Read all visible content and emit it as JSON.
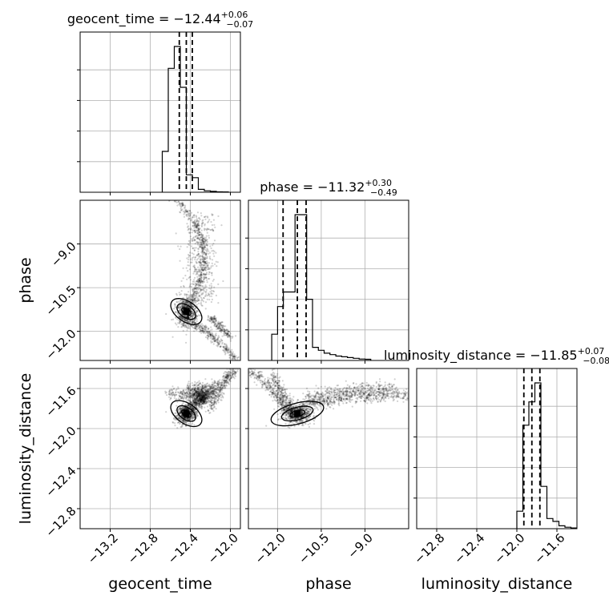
{
  "chart_data": {
    "type": "corner",
    "parameters": [
      {
        "name": "geocent_time",
        "title": "geocent_time = −12.44",
        "sup": "+0.06",
        "sub": "−0.07",
        "range": [
          -13.5,
          -11.9
        ],
        "ticks": [
          "−13.2",
          "−12.8",
          "−12.4",
          "−12.0"
        ],
        "tick_values": [
          -13.2,
          -12.8,
          -12.4,
          -12.0
        ],
        "quantiles": [
          -12.51,
          -12.44,
          -12.38
        ],
        "hist_edges": [
          -12.68,
          -12.62,
          -12.56,
          -12.5,
          -12.44,
          -12.38,
          -12.32,
          -12.26,
          -12.2,
          -12.14,
          -12.08,
          -12.02
        ],
        "hist_counts": [
          0.28,
          0.85,
          1.0,
          0.72,
          0.12,
          0.1,
          0.02,
          0.01,
          0.006,
          0.003,
          0.002
        ]
      },
      {
        "name": "phase",
        "title": "phase = −11.32",
        "sup": "+0.30",
        "sub": "−0.49",
        "range": [
          -13.0,
          -7.5
        ],
        "ticks": [
          "−12.0",
          "−10.5",
          "−9.0"
        ],
        "tick_values": [
          -12.0,
          -10.5,
          -9.0
        ],
        "quantiles": [
          -11.81,
          -11.32,
          -11.02
        ],
        "hist_edges": [
          -12.2,
          -12.0,
          -11.8,
          -11.6,
          -11.4,
          -11.2,
          -11.0,
          -10.8,
          -10.6,
          -10.4,
          -10.2,
          -10.0,
          -9.8,
          -9.6,
          -9.4,
          -9.2,
          -9.0,
          -8.8
        ],
        "hist_counts": [
          0.18,
          0.37,
          0.47,
          0.47,
          1.0,
          1.0,
          0.42,
          0.09,
          0.07,
          0.05,
          0.04,
          0.03,
          0.025,
          0.02,
          0.015,
          0.01,
          0.008
        ]
      },
      {
        "name": "luminosity_distance",
        "title": "luminosity_distance = −11.85",
        "sup": "+0.07",
        "sub": "−0.08",
        "range": [
          -13.0,
          -11.4
        ],
        "ticks": [
          "−12.8",
          "−12.4",
          "−12.0",
          "−11.6"
        ],
        "tick_values": [
          -12.8,
          -12.4,
          -12.0,
          -11.6
        ],
        "quantiles": [
          -11.93,
          -11.85,
          -11.77
        ],
        "hist_edges": [
          -12.0,
          -11.94,
          -11.88,
          -11.82,
          -11.76,
          -11.7,
          -11.64,
          -11.58,
          -11.52,
          -11.46,
          -11.4
        ],
        "hist_counts": [
          0.12,
          0.71,
          0.87,
          1.0,
          0.29,
          0.07,
          0.05,
          0.02,
          0.01,
          0.005
        ]
      }
    ],
    "axis_labels": [
      "geocent_time",
      "phase",
      "luminosity_distance"
    ],
    "grid": true
  }
}
